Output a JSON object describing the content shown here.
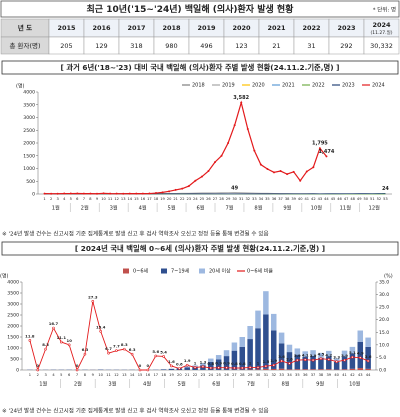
{
  "header": {
    "title": "최근 10년('15~'24년) 백일해 (의사)환자 발생 현황",
    "unit": "* 단위: 명"
  },
  "table": {
    "header": [
      "년 도",
      "2015",
      "2016",
      "2017",
      "2018",
      "2019",
      "2020",
      "2021",
      "2022",
      "2023",
      "2024"
    ],
    "header_note": "(11.27.일)",
    "rows": [
      [
        "총 환자(명)",
        "205",
        "129",
        "318",
        "980",
        "496",
        "123",
        "21",
        "31",
        "292",
        "30,332"
      ]
    ]
  },
  "notes": [
    "※ '24년 발생 건수는 신고시점 기준 집계통계로 발생 신고 후 검사 역학조사 오신고 정정 등을 통해 변경될 수 있음",
    "※ '24년 발생 건수는 신고시점 기준 집계통계로 발생 신고 후 검사 역학조사 오신고 정정 등을 통해 변경될 수 있음"
  ],
  "chart_data": [
    {
      "type": "line",
      "title": "[ 과거 6년('18~'23) 대비 국내 백일해 (의사)환자 주별 발생 현황(24.11.2.기준,명) ]",
      "y_label": "(명)",
      "x": [
        1,
        2,
        3,
        4,
        5,
        6,
        7,
        8,
        9,
        10,
        11,
        12,
        13,
        14,
        15,
        16,
        17,
        18,
        19,
        20,
        21,
        22,
        23,
        24,
        25,
        26,
        27,
        28,
        29,
        30,
        31,
        32,
        33,
        34,
        35,
        36,
        37,
        38,
        39,
        40,
        41,
        42,
        43,
        44,
        45,
        46,
        47,
        48,
        49,
        50,
        51,
        52,
        53
      ],
      "xlim": [
        0,
        54
      ],
      "ylim": [
        0,
        4000
      ],
      "yticks": [
        0,
        500,
        1000,
        1500,
        2000,
        2500,
        3000,
        3500,
        4000
      ],
      "month_labels": [
        "1월",
        "2월",
        "3월",
        "4월",
        "5월",
        "6월",
        "7월",
        "8월",
        "9월",
        "10월",
        "11월",
        "12월"
      ],
      "grid": false,
      "legend": "top-right",
      "series": [
        {
          "name": "2018",
          "color": "#7f7f7f",
          "values": [
            8,
            10,
            12,
            9,
            11,
            14,
            12,
            15,
            13,
            16,
            18,
            17,
            20,
            19,
            22,
            21,
            24,
            22,
            25,
            27,
            26,
            30,
            32,
            35,
            38,
            40,
            42,
            45,
            47,
            49,
            44,
            40,
            36,
            32,
            28,
            25,
            22,
            20,
            18,
            17,
            15,
            14,
            13,
            12,
            12,
            11,
            10,
            10,
            9,
            9,
            8,
            8,
            7
          ],
          "value_labels": [
            null,
            null,
            null,
            null,
            null,
            null,
            null,
            null,
            null,
            null,
            null,
            null,
            null,
            null,
            null,
            null,
            null,
            null,
            null,
            null,
            null,
            null,
            null,
            null,
            null,
            null,
            null,
            null,
            null,
            "49",
            null,
            null,
            null,
            null,
            null,
            null,
            null,
            null,
            null,
            null,
            null,
            null,
            null,
            null,
            null,
            null,
            null,
            null,
            null,
            null,
            null,
            null,
            null
          ]
        },
        {
          "name": "2019",
          "color": "#a5a5a5",
          "values": [
            12,
            11,
            10,
            9,
            10,
            11,
            12,
            10,
            9,
            11,
            10,
            12,
            11,
            10,
            9,
            10,
            11,
            12,
            10,
            9,
            10,
            11,
            12,
            13,
            11,
            10,
            9,
            10,
            11,
            12,
            10,
            9,
            8,
            9,
            10,
            9,
            8,
            9,
            10,
            8,
            9,
            8,
            7,
            8,
            9,
            8,
            7,
            8,
            7,
            6,
            7,
            6,
            5
          ]
        },
        {
          "name": "2020",
          "color": "#ffc000",
          "values": [
            6,
            5,
            7,
            6,
            5,
            4,
            3,
            2,
            2,
            1,
            2,
            1,
            2,
            1,
            1,
            2,
            1,
            2,
            1,
            2,
            2,
            1,
            2,
            2,
            3,
            2,
            2,
            3,
            2,
            2,
            3,
            2,
            2,
            3,
            2,
            2,
            3,
            2,
            2,
            2,
            3,
            2,
            2,
            3,
            2,
            2,
            2,
            3,
            2,
            2,
            3,
            2,
            2
          ]
        },
        {
          "name": "2021",
          "color": "#5b9bd5",
          "values": [
            1,
            0,
            1,
            0,
            0,
            1,
            0,
            0,
            1,
            0,
            0,
            1,
            0,
            0,
            1,
            0,
            0,
            1,
            0,
            0,
            1,
            0,
            0,
            1,
            0,
            0,
            1,
            0,
            0,
            1,
            0,
            0,
            1,
            0,
            0,
            1,
            0,
            0,
            1,
            0,
            0,
            1,
            0,
            0,
            1,
            0,
            0,
            1,
            0,
            0,
            1,
            0,
            0
          ]
        },
        {
          "name": "2022",
          "color": "#70ad47",
          "values": [
            0,
            1,
            0,
            1,
            0,
            1,
            0,
            1,
            0,
            1,
            0,
            1,
            0,
            1,
            0,
            1,
            0,
            1,
            0,
            1,
            0,
            1,
            0,
            1,
            0,
            1,
            0,
            1,
            0,
            1,
            0,
            1,
            0,
            1,
            0,
            1,
            0,
            1,
            0,
            1,
            0,
            1,
            0,
            1,
            0,
            1,
            0,
            1,
            0,
            1,
            0,
            1,
            0
          ]
        },
        {
          "name": "2023",
          "color": "#264478",
          "values": [
            1,
            2,
            1,
            2,
            2,
            1,
            2,
            2,
            3,
            2,
            3,
            2,
            3,
            3,
            2,
            3,
            3,
            4,
            3,
            4,
            4,
            3,
            4,
            5,
            4,
            5,
            5,
            4,
            5,
            6,
            5,
            6,
            6,
            5,
            6,
            7,
            6,
            7,
            8,
            7,
            8,
            9,
            8,
            9,
            10,
            11,
            12,
            13,
            14,
            16,
            18,
            21,
            24
          ],
          "value_labels": [
            null,
            null,
            null,
            null,
            null,
            null,
            null,
            null,
            null,
            null,
            null,
            null,
            null,
            null,
            null,
            null,
            null,
            null,
            null,
            null,
            null,
            null,
            null,
            null,
            null,
            null,
            null,
            null,
            null,
            null,
            null,
            null,
            null,
            null,
            null,
            null,
            null,
            null,
            null,
            null,
            null,
            null,
            null,
            null,
            null,
            null,
            null,
            null,
            null,
            null,
            null,
            null,
            "24"
          ]
        },
        {
          "name": "2024",
          "color": "#e31a1c",
          "values": [
            17,
            12,
            12,
            18,
            18,
            20,
            16,
            16,
            11,
            26,
            15,
            13,
            12,
            16,
            14,
            15,
            18,
            37,
            64,
            105,
            160,
            210,
            310,
            520,
            680,
            900,
            1250,
            1500,
            2000,
            2700,
            3582,
            2550,
            1700,
            1150,
            980,
            850,
            900,
            780,
            870,
            520,
            880,
            1050,
            1795,
            1474,
            null,
            null,
            null,
            null,
            null,
            null,
            null,
            null,
            null
          ],
          "value_labels": [
            null,
            null,
            null,
            null,
            null,
            null,
            null,
            null,
            null,
            null,
            null,
            null,
            null,
            null,
            null,
            null,
            null,
            null,
            null,
            null,
            null,
            null,
            null,
            null,
            null,
            null,
            null,
            null,
            null,
            null,
            "3,582",
            null,
            null,
            null,
            null,
            null,
            null,
            null,
            null,
            null,
            null,
            null,
            "1,795",
            "1,474",
            null,
            null,
            null,
            null,
            null,
            null,
            null,
            null,
            null
          ]
        }
      ]
    },
    {
      "type": "bar",
      "stacked": true,
      "title": "[ 2024년 국내 백일해 0~6세 (의사)환자 주별 발생 현황(24.11.2.기준,명) ]",
      "y_label": "(명)",
      "y2_label": "(%)",
      "x": [
        1,
        2,
        3,
        4,
        5,
        6,
        7,
        8,
        9,
        10,
        11,
        12,
        13,
        14,
        15,
        16,
        17,
        18,
        19,
        20,
        21,
        22,
        23,
        24,
        25,
        26,
        27,
        28,
        29,
        30,
        31,
        32,
        33,
        34,
        35,
        36,
        37,
        38,
        39,
        40,
        41,
        42,
        43,
        44
      ],
      "xlim": [
        0,
        45
      ],
      "ylim": [
        0,
        4000
      ],
      "yticks": [
        0,
        500,
        1000,
        1500,
        2000,
        2500,
        3000,
        3500,
        4000
      ],
      "y2lim": [
        0,
        35
      ],
      "y2ticks": [
        {
          "value": 0,
          "label": "0.0"
        },
        {
          "value": 5,
          "label": "5.0"
        },
        {
          "value": 10,
          "label": "10.0"
        },
        {
          "value": 15,
          "label": "15.0"
        },
        {
          "value": 20,
          "label": "20.0"
        },
        {
          "value": 25,
          "label": "25.0"
        },
        {
          "value": 30,
          "label": "30.0"
        },
        {
          "value": 35,
          "label": "35.0"
        }
      ],
      "month_labels": [
        "1월",
        "2월",
        "3월",
        "4월",
        "5월",
        "6월",
        "7월",
        "8월",
        "9월",
        "10월"
      ],
      "legend": "top",
      "series": [
        {
          "name": "0~6세",
          "color": "#c0504d",
          "values": [
            2,
            0,
            1,
            3,
            2,
            2,
            0,
            1,
            3,
            4,
            1,
            1,
            1,
            1,
            0,
            0,
            1,
            2,
            1,
            1,
            3,
            2,
            4,
            4,
            6,
            8,
            10,
            12,
            20,
            27,
            54,
            48,
            61,
            30,
            38,
            35,
            35,
            35,
            37,
            17,
            34,
            54,
            88,
            53
          ]
        },
        {
          "name": "7~19세",
          "color": "#2f4f8f",
          "values": [
            11,
            9,
            8,
            11,
            11,
            13,
            11,
            11,
            6,
            16,
            10,
            9,
            8,
            11,
            10,
            10,
            12,
            25,
            44,
            73,
            110,
            146,
            214,
            361,
            472,
            624,
            868,
            1042,
            1386,
            1871,
            2470,
            1752,
            1147,
            784,
            660,
            570,
            605,
            521,
            583,
            352,
            592,
            697,
            1195,
            995
          ]
        },
        {
          "name": "20세 이상",
          "color": "#9db8e0",
          "values": [
            4,
            3,
            3,
            4,
            5,
            5,
            5,
            4,
            2,
            6,
            4,
            3,
            3,
            4,
            4,
            5,
            5,
            10,
            19,
            31,
            47,
            62,
            92,
            155,
            202,
            268,
            372,
            446,
            594,
            802,
            1058,
            750,
            492,
            336,
            282,
            245,
            260,
            224,
            250,
            151,
            254,
            299,
            512,
            426
          ]
        },
        {
          "name": "0~6세 비율",
          "type": "line",
          "axis": "y2",
          "color": "#e31a1c",
          "values": [
            11.8,
            0,
            8.3,
            16.7,
            11.1,
            10.0,
            0,
            6.3,
            27.3,
            15.4,
            6.7,
            7.7,
            8.3,
            6.3,
            0,
            0,
            5.6,
            5.4,
            1.6,
            0.6,
            1.9,
            1.0,
            1.3,
            0.8,
            0.9,
            0.9,
            0.8,
            0.8,
            1.0,
            1.0,
            1.5,
            1.9,
            3.6,
            2.6,
            3.9,
            4.1,
            3.9,
            4.5,
            4.2,
            3.3,
            3.9,
            5.1,
            4.9,
            3.6
          ]
        }
      ]
    }
  ]
}
